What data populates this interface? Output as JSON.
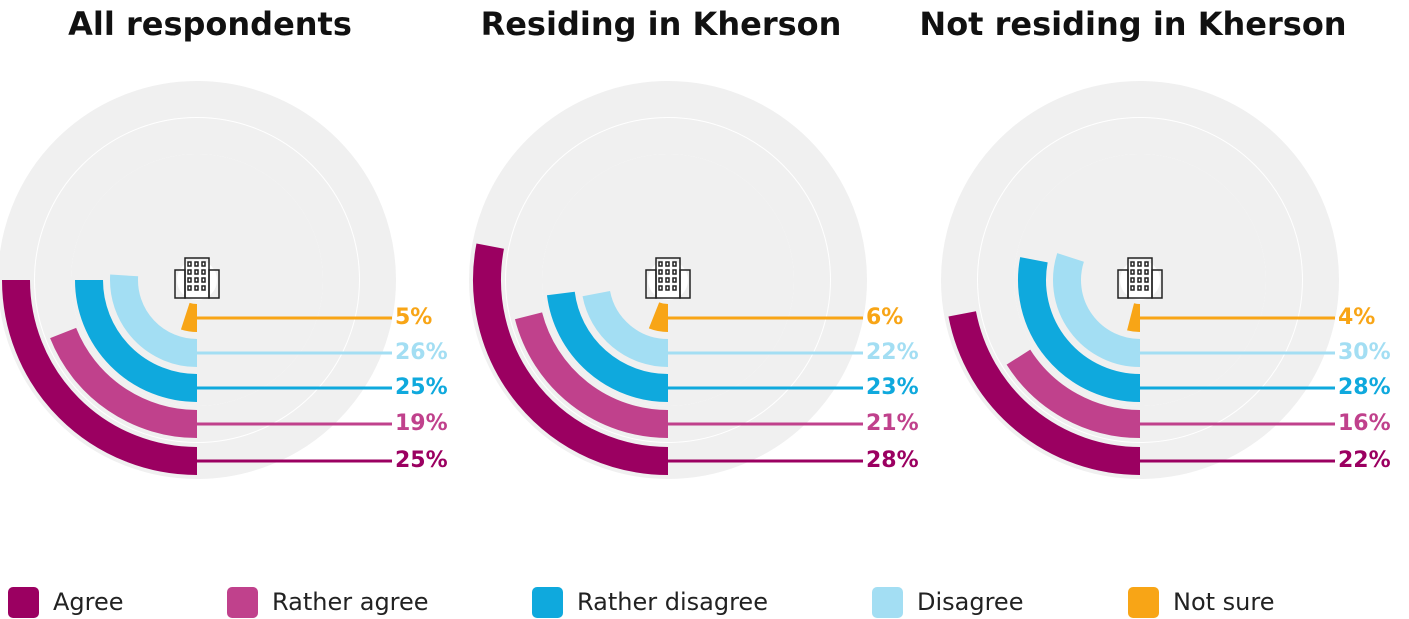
{
  "legend": {
    "labels": [
      "Agree",
      "Rather agree",
      "Rather disagree",
      "Disagree",
      "Not sure"
    ],
    "colors": [
      "#9b0061",
      "#c0418c",
      "#0fa9dd",
      "#a3def3",
      "#f8a516"
    ]
  },
  "chart_data": [
    {
      "type": "radial_bar",
      "title": "All respondents",
      "values": [
        25,
        19,
        25,
        26,
        5
      ],
      "value_labels": [
        "25%",
        "19%",
        "25%",
        "26%",
        "5%"
      ]
    },
    {
      "type": "radial_bar",
      "title": "Residing in Kherson",
      "values": [
        28,
        21,
        23,
        22,
        6
      ],
      "value_labels": [
        "28%",
        "21%",
        "23%",
        "22%",
        "6%"
      ]
    },
    {
      "type": "radial_bar",
      "title": "Not residing in Kherson",
      "values": [
        22,
        16,
        28,
        30,
        4
      ],
      "value_labels": [
        "22%",
        "16%",
        "28%",
        "30%",
        "4%"
      ]
    }
  ]
}
